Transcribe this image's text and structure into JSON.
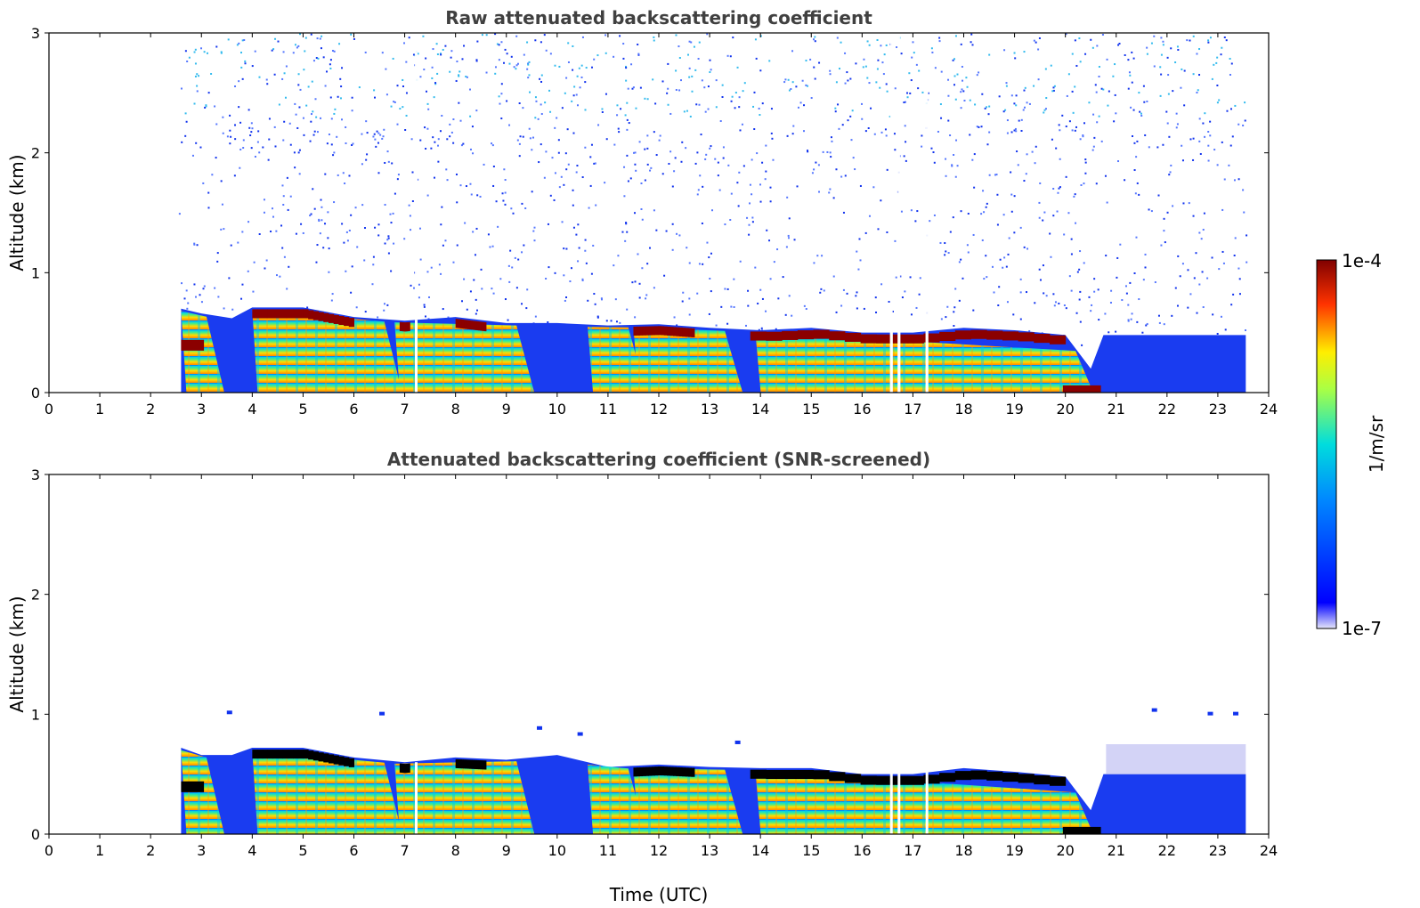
{
  "chart_data": [
    {
      "type": "heatmap",
      "title": "Raw attenuated backscattering coefficient",
      "xlabel": "",
      "ylabel": "Altitude (km)",
      "xlim": [
        0,
        24
      ],
      "ylim": [
        0,
        3
      ],
      "xticks": [
        "0",
        "1",
        "2",
        "3",
        "4",
        "5",
        "6",
        "7",
        "8",
        "9",
        "10",
        "11",
        "12",
        "13",
        "14",
        "15",
        "16",
        "17",
        "18",
        "19",
        "20",
        "21",
        "22",
        "23",
        "24"
      ],
      "yticks": [
        "0",
        "1",
        "2",
        "3"
      ],
      "data_time_range": [
        2.55,
        23.55
      ],
      "boundary_layer_top_km": [
        {
          "t": 2.6,
          "h": 0.7
        },
        {
          "t": 3.0,
          "h": 0.66
        },
        {
          "t": 3.6,
          "h": 0.62
        },
        {
          "t": 4.0,
          "h": 0.71
        },
        {
          "t": 5.0,
          "h": 0.71
        },
        {
          "t": 6.0,
          "h": 0.63
        },
        {
          "t": 7.0,
          "h": 0.6
        },
        {
          "t": 8.0,
          "h": 0.63
        },
        {
          "t": 9.0,
          "h": 0.58
        },
        {
          "t": 10.0,
          "h": 0.58
        },
        {
          "t": 11.0,
          "h": 0.56
        },
        {
          "t": 12.0,
          "h": 0.57
        },
        {
          "t": 13.0,
          "h": 0.54
        },
        {
          "t": 14.0,
          "h": 0.52
        },
        {
          "t": 15.0,
          "h": 0.54
        },
        {
          "t": 16.0,
          "h": 0.5
        },
        {
          "t": 17.0,
          "h": 0.5
        },
        {
          "t": 18.0,
          "h": 0.54
        },
        {
          "t": 19.0,
          "h": 0.52
        },
        {
          "t": 20.0,
          "h": 0.48
        },
        {
          "t": 20.5,
          "h": 0.2
        },
        {
          "t": 20.75,
          "h": 0.48
        },
        {
          "t": 23.55,
          "h": 0.48
        }
      ],
      "background_noise_top_km": 3
    },
    {
      "type": "heatmap",
      "title": "Attenuated backscattering coefficient (SNR-screened)",
      "xlabel": "Time (UTC)",
      "ylabel": "Altitude (km)",
      "xlim": [
        0,
        24
      ],
      "ylim": [
        0,
        3
      ],
      "xticks": [
        "0",
        "1",
        "2",
        "3",
        "4",
        "5",
        "6",
        "7",
        "8",
        "9",
        "10",
        "11",
        "12",
        "13",
        "14",
        "15",
        "16",
        "17",
        "18",
        "19",
        "20",
        "21",
        "22",
        "23",
        "24"
      ],
      "yticks": [
        "0",
        "1",
        "2",
        "3"
      ],
      "data_time_range": [
        2.55,
        23.55
      ],
      "boundary_layer_top_km": [
        {
          "t": 2.6,
          "h": 0.72
        },
        {
          "t": 3.0,
          "h": 0.66
        },
        {
          "t": 3.6,
          "h": 0.66
        },
        {
          "t": 4.0,
          "h": 0.72
        },
        {
          "t": 5.0,
          "h": 0.72
        },
        {
          "t": 6.0,
          "h": 0.64
        },
        {
          "t": 7.0,
          "h": 0.6
        },
        {
          "t": 8.0,
          "h": 0.64
        },
        {
          "t": 9.0,
          "h": 0.62
        },
        {
          "t": 10.0,
          "h": 0.66
        },
        {
          "t": 11.0,
          "h": 0.56
        },
        {
          "t": 12.0,
          "h": 0.58
        },
        {
          "t": 13.0,
          "h": 0.56
        },
        {
          "t": 14.0,
          "h": 0.55
        },
        {
          "t": 15.0,
          "h": 0.55
        },
        {
          "t": 16.0,
          "h": 0.5
        },
        {
          "t": 17.0,
          "h": 0.5
        },
        {
          "t": 18.0,
          "h": 0.55
        },
        {
          "t": 19.0,
          "h": 0.52
        },
        {
          "t": 20.0,
          "h": 0.48
        },
        {
          "t": 20.5,
          "h": 0.2
        },
        {
          "t": 20.75,
          "h": 0.5
        },
        {
          "t": 23.55,
          "h": 0.5
        }
      ],
      "background_noise_top_km": 0
    }
  ],
  "colorbar": {
    "label": "1/m/sr",
    "max_label": "1e-4",
    "min_label": "1e-7",
    "scale": "log",
    "colormap": [
      "#e6e6fa",
      "#0000ff",
      "#00ffff",
      "#ffff00",
      "#ff0000",
      "#800000"
    ]
  },
  "colors": {
    "axis": "#000000",
    "title_text": "#404040",
    "low": "#0022ee",
    "high_layer_raw": "#8b0000",
    "high_layer_screened": "#000000"
  }
}
